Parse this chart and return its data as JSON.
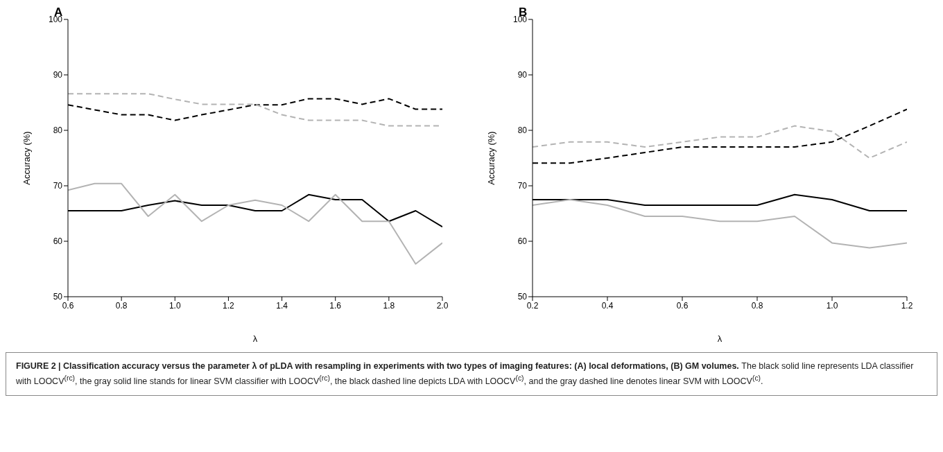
{
  "chart_data": [
    {
      "type": "line",
      "title": "A",
      "xlabel": "λ",
      "ylabel": "Accuracy (%)",
      "x": [
        0.6,
        0.7,
        0.8,
        0.9,
        1.0,
        1.1,
        1.2,
        1.3,
        1.4,
        1.5,
        1.6,
        1.7,
        1.8,
        1.9,
        2.0
      ],
      "series": [
        {
          "color": "#000000",
          "line_style": "solid",
          "values": [
            65.5,
            65.5,
            65.5,
            66.5,
            67.3,
            66.5,
            66.5,
            65.5,
            65.5,
            68.4,
            67.5,
            67.5,
            63.6,
            65.5,
            62.6
          ]
        },
        {
          "color": "#b3b3b3",
          "line_style": "solid",
          "values": [
            69.2,
            70.4,
            70.4,
            64.5,
            68.4,
            63.6,
            66.5,
            67.4,
            66.5,
            63.6,
            68.4,
            63.6,
            63.6,
            55.9,
            59.7
          ]
        },
        {
          "color": "#000000",
          "line_style": "dashed",
          "values": [
            84.6,
            83.7,
            82.8,
            82.8,
            81.8,
            82.8,
            83.7,
            84.6,
            84.6,
            85.7,
            85.7,
            84.7,
            85.7,
            83.8,
            83.8
          ]
        },
        {
          "color": "#b3b3b3",
          "line_style": "dashed",
          "values": [
            86.6,
            86.6,
            86.6,
            86.6,
            85.6,
            84.7,
            84.7,
            84.7,
            82.8,
            81.8,
            81.8,
            81.8,
            80.8,
            80.8,
            80.8
          ]
        }
      ],
      "xlim": [
        0.6,
        2.0
      ],
      "xticks": [
        {
          "value": 0.6,
          "label": "0.6"
        },
        {
          "value": 0.8,
          "label": "0.8"
        },
        {
          "value": 1.0,
          "label": "1.0"
        },
        {
          "value": 1.2,
          "label": "1.2"
        },
        {
          "value": 1.4,
          "label": "1.4"
        },
        {
          "value": 1.6,
          "label": "1.6"
        },
        {
          "value": 1.8,
          "label": "1.8"
        },
        {
          "value": 2.0,
          "label": "2.0"
        }
      ],
      "ylim": [
        50,
        100
      ],
      "yticks": [
        50,
        60,
        70,
        80,
        90,
        100
      ],
      "grid": false,
      "legend": false,
      "marker": "none",
      "annotations": [
        "FIGURE 2 | Classification accuracy versus the parameter λ of pLDA with resampling in experiments with two types of imaging features: (A) local deformations, (B) GM volumes.",
        "The black solid line represents LDA classifier with LOOCV$^{(rc)}$, the gray solid line stands for linear SVM classifier with LOOCV$^{(rc)}$, the black dashed line depicts LDA with LOOCV$^{(c)}$, and the gray dashed line denotes linear SVM with LOOCV$^{(c)}$."
      ]
    },
    {
      "type": "line",
      "title": "B",
      "xlabel": "λ",
      "ylabel": "Accuracy (%)",
      "x": [
        0.2,
        0.3,
        0.4,
        0.5,
        0.6,
        0.7,
        0.8,
        0.9,
        1.0,
        1.1,
        1.2
      ],
      "series": [
        {
          "color": "#000000",
          "line_style": "solid",
          "values": [
            67.5,
            67.5,
            67.5,
            66.5,
            66.5,
            66.5,
            66.5,
            68.4,
            67.5,
            65.5,
            65.5
          ]
        },
        {
          "color": "#b3b3b3",
          "line_style": "solid",
          "values": [
            66.5,
            67.5,
            66.5,
            64.5,
            64.5,
            63.6,
            63.6,
            64.5,
            59.7,
            58.8,
            59.7
          ]
        },
        {
          "color": "#000000",
          "line_style": "dashed",
          "values": [
            74.1,
            74.1,
            75.0,
            76.0,
            77.0,
            77.0,
            77.0,
            77.0,
            77.9,
            80.8,
            83.8
          ]
        },
        {
          "color": "#b3b3b3",
          "line_style": "dashed",
          "values": [
            77.0,
            77.9,
            77.9,
            77.0,
            77.9,
            78.8,
            78.8,
            80.8,
            79.8,
            75.0,
            77.9
          ]
        }
      ],
      "xlim": [
        0.2,
        1.2
      ],
      "xticks": [
        {
          "value": 0.2,
          "label": "0.2"
        },
        {
          "value": 0.4,
          "label": "0.4"
        },
        {
          "value": 0.6,
          "label": "0.6"
        },
        {
          "value": 0.8,
          "label": "0.8"
        },
        {
          "value": 1.0,
          "label": "1.0"
        },
        {
          "value": 1.2,
          "label": "1.2"
        }
      ],
      "ylim": [
        50,
        100
      ],
      "yticks": [
        50,
        60,
        70,
        80,
        90,
        100
      ],
      "grid": false,
      "legend": false,
      "marker": "none"
    }
  ]
}
